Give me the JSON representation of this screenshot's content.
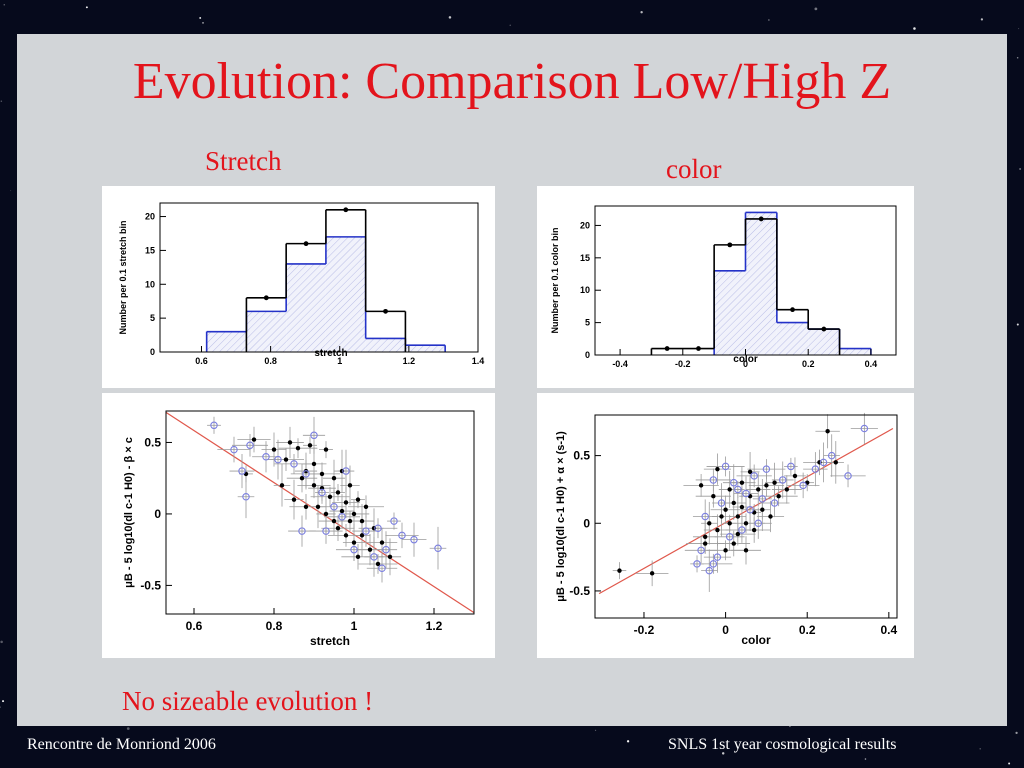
{
  "slide": {
    "title": "Evolution: Comparison Low/High Z",
    "caption_stretch": "Stretch",
    "caption_color": "color",
    "conclusion": "No sizeable evolution !",
    "footer_left": "Rencontre de Monriond 2006",
    "footer_right": "SNLS 1st year cosmological  results"
  },
  "colors": {
    "title_red": "#e3141c",
    "panel_gray": "#d2d5d8",
    "background": "#060a1c",
    "histogram_black": "#000000",
    "histogram_blue": "#2432c8",
    "fit_line": "#e0584c",
    "open_marker": "#7b7fe0"
  },
  "chart_data": [
    {
      "type": "bar",
      "id": "stretch_hist",
      "xlabel": "stretch",
      "ylabel": "Number per 0.1 stretch bin",
      "xlim": [
        0.48,
        1.4
      ],
      "ylim": [
        0,
        22
      ],
      "xticks": [
        0.6,
        0.8,
        1,
        1.2,
        1.4
      ],
      "xtick_labels": [
        "0.6",
        "0.8",
        "1",
        "1.2",
        "1.4"
      ],
      "yticks": [
        0,
        5,
        10,
        15,
        20
      ],
      "ytick_labels": [
        "0",
        "5",
        "10",
        "15",
        "20"
      ],
      "bin_edges": [
        0.615,
        0.73,
        0.845,
        0.96,
        1.075,
        1.19,
        1.305
      ],
      "series": [
        {
          "style": "outline+points",
          "values": [
            0,
            8,
            16,
            21,
            6,
            0
          ]
        },
        {
          "style": "hatched",
          "values": [
            3,
            6,
            13,
            17,
            2,
            1
          ]
        }
      ]
    },
    {
      "type": "bar",
      "id": "color_hist",
      "xlabel": "color",
      "ylabel": "Number per 0.1 color bin",
      "xlim": [
        -0.48,
        0.48
      ],
      "ylim": [
        0,
        23
      ],
      "xticks": [
        -0.4,
        -0.2,
        0,
        0.2,
        0.4
      ],
      "xtick_labels": [
        "-0.4",
        "-0.2",
        "0",
        "0.2",
        "0.4"
      ],
      "yticks": [
        0,
        5,
        10,
        15,
        20
      ],
      "ytick_labels": [
        "0",
        "5",
        "10",
        "15",
        "20"
      ],
      "bin_edges": [
        -0.3,
        -0.2,
        -0.1,
        0,
        0.1,
        0.2,
        0.3,
        0.4
      ],
      "series": [
        {
          "style": "outline+points",
          "values": [
            1,
            1,
            17,
            21,
            7,
            4,
            0
          ]
        },
        {
          "style": "hatched",
          "values": [
            0,
            0,
            13,
            22,
            5,
            4,
            1
          ]
        }
      ]
    },
    {
      "type": "scatter",
      "id": "stretch_residuals",
      "xlabel": "stretch",
      "ylabel": "μB - 5 log10(dl c-1 H0) - β × c",
      "xlim": [
        0.53,
        1.3
      ],
      "ylim": [
        -0.7,
        0.72
      ],
      "xticks": [
        0.6,
        0.8,
        1,
        1.2
      ],
      "xtick_labels": [
        "0.6",
        "0.8",
        "1",
        "1.2"
      ],
      "yticks": [
        -0.5,
        0,
        0.5
      ],
      "ytick_labels": [
        "-0.5",
        "0",
        "0.5"
      ],
      "fit_line": [
        [
          0.53,
          0.71
        ],
        [
          1.3,
          -0.69
        ]
      ],
      "series": [
        {
          "style": "filled",
          "points": [
            [
              0.73,
              0.28
            ],
            [
              0.75,
              0.52
            ],
            [
              0.8,
              0.45
            ],
            [
              0.82,
              0.2
            ],
            [
              0.83,
              0.38
            ],
            [
              0.84,
              0.5
            ],
            [
              0.85,
              0.1
            ],
            [
              0.86,
              0.46
            ],
            [
              0.87,
              0.25
            ],
            [
              0.88,
              0.3
            ],
            [
              0.89,
              0.48
            ],
            [
              0.9,
              0.2
            ],
            [
              0.9,
              0.35
            ],
            [
              0.91,
              0.05
            ],
            [
              0.92,
              0.28
            ],
            [
              0.92,
              0.18
            ],
            [
              0.93,
              0.0
            ],
            [
              0.94,
              0.12
            ],
            [
              0.95,
              -0.05
            ],
            [
              0.95,
              0.25
            ],
            [
              0.96,
              0.15
            ],
            [
              0.96,
              -0.1
            ],
            [
              0.97,
              0.02
            ],
            [
              0.97,
              0.3
            ],
            [
              0.98,
              -0.15
            ],
            [
              0.98,
              0.08
            ],
            [
              0.99,
              0.2
            ],
            [
              0.99,
              -0.05
            ],
            [
              1.0,
              0.0
            ],
            [
              1.0,
              -0.2
            ],
            [
              1.01,
              0.1
            ],
            [
              1.01,
              -0.3
            ],
            [
              1.02,
              -0.05
            ],
            [
              1.02,
              -0.15
            ],
            [
              1.03,
              0.05
            ],
            [
              1.04,
              -0.25
            ],
            [
              1.05,
              -0.1
            ],
            [
              1.06,
              -0.35
            ],
            [
              1.07,
              -0.2
            ],
            [
              1.09,
              -0.3
            ],
            [
              0.93,
              0.45
            ],
            [
              0.88,
              0.05
            ]
          ]
        },
        {
          "style": "open",
          "points": [
            [
              0.65,
              0.62
            ],
            [
              0.7,
              0.45
            ],
            [
              0.72,
              0.3
            ],
            [
              0.73,
              0.12
            ],
            [
              0.74,
              0.48
            ],
            [
              0.78,
              0.4
            ],
            [
              0.81,
              0.38
            ],
            [
              0.85,
              0.35
            ],
            [
              0.88,
              0.28
            ],
            [
              0.9,
              0.55
            ],
            [
              0.92,
              0.15
            ],
            [
              0.93,
              -0.12
            ],
            [
              0.95,
              0.05
            ],
            [
              0.98,
              0.3
            ],
            [
              1.0,
              -0.25
            ],
            [
              1.03,
              -0.12
            ],
            [
              1.05,
              -0.3
            ],
            [
              1.06,
              -0.1
            ],
            [
              1.07,
              -0.38
            ],
            [
              1.08,
              -0.25
            ],
            [
              1.1,
              -0.05
            ],
            [
              1.12,
              -0.15
            ],
            [
              1.15,
              -0.18
            ],
            [
              1.21,
              -0.24
            ],
            [
              0.97,
              -0.02
            ],
            [
              0.87,
              -0.12
            ]
          ]
        }
      ]
    },
    {
      "type": "scatter",
      "id": "color_residuals",
      "xlabel": "color",
      "ylabel": "μB - 5 log10(dl c-1 H0) + α × (s-1)",
      "xlim": [
        -0.32,
        0.42
      ],
      "ylim": [
        -0.7,
        0.8
      ],
      "xticks": [
        -0.2,
        0,
        0.2,
        0.4
      ],
      "xtick_labels": [
        "-0.2",
        "0",
        "0.2",
        "0.4"
      ],
      "yticks": [
        -0.5,
        0,
        0.5
      ],
      "ytick_labels": [
        "-0.5",
        "0",
        "0.5"
      ],
      "fit_line": [
        [
          -0.31,
          -0.52
        ],
        [
          0.41,
          0.7
        ]
      ],
      "series": [
        {
          "style": "filled",
          "points": [
            [
              -0.26,
              -0.35
            ],
            [
              -0.18,
              -0.37
            ],
            [
              -0.05,
              -0.1
            ],
            [
              -0.04,
              0.0
            ],
            [
              -0.03,
              0.2
            ],
            [
              -0.02,
              -0.05
            ],
            [
              -0.01,
              0.05
            ],
            [
              0.0,
              -0.2
            ],
            [
              0.0,
              0.1
            ],
            [
              0.01,
              0.25
            ],
            [
              0.01,
              0.0
            ],
            [
              0.02,
              -0.15
            ],
            [
              0.02,
              0.15
            ],
            [
              0.03,
              0.05
            ],
            [
              0.03,
              -0.08
            ],
            [
              0.04,
              0.3
            ],
            [
              0.04,
              0.12
            ],
            [
              0.05,
              0.0
            ],
            [
              0.05,
              -0.2
            ],
            [
              0.06,
              0.2
            ],
            [
              0.07,
              0.08
            ],
            [
              0.07,
              -0.05
            ],
            [
              0.08,
              0.25
            ],
            [
              0.09,
              0.1
            ],
            [
              0.1,
              0.28
            ],
            [
              0.11,
              0.05
            ],
            [
              0.12,
              0.3
            ],
            [
              0.13,
              0.2
            ],
            [
              0.15,
              0.25
            ],
            [
              0.17,
              0.35
            ],
            [
              0.2,
              0.3
            ],
            [
              0.23,
              0.45
            ],
            [
              0.25,
              0.68
            ],
            [
              0.27,
              0.45
            ],
            [
              -0.06,
              0.28
            ],
            [
              -0.02,
              0.4
            ],
            [
              0.06,
              0.38
            ],
            [
              -0.05,
              -0.15
            ]
          ]
        },
        {
          "style": "open",
          "points": [
            [
              -0.07,
              -0.3
            ],
            [
              -0.06,
              -0.2
            ],
            [
              -0.05,
              0.05
            ],
            [
              -0.04,
              -0.35
            ],
            [
              -0.03,
              0.32
            ],
            [
              -0.02,
              -0.25
            ],
            [
              -0.01,
              0.15
            ],
            [
              0.0,
              0.42
            ],
            [
              0.01,
              -0.1
            ],
            [
              0.02,
              0.3
            ],
            [
              0.03,
              0.25
            ],
            [
              0.04,
              -0.05
            ],
            [
              0.05,
              0.22
            ],
            [
              0.06,
              0.1
            ],
            [
              0.07,
              0.35
            ],
            [
              0.08,
              0.0
            ],
            [
              0.09,
              0.18
            ],
            [
              0.1,
              0.4
            ],
            [
              0.12,
              0.15
            ],
            [
              0.14,
              0.32
            ],
            [
              0.16,
              0.42
            ],
            [
              0.19,
              0.28
            ],
            [
              0.22,
              0.4
            ],
            [
              0.26,
              0.5
            ],
            [
              0.3,
              0.35
            ],
            [
              0.34,
              0.7
            ],
            [
              0.24,
              0.45
            ],
            [
              -0.03,
              -0.3
            ]
          ]
        }
      ]
    }
  ]
}
